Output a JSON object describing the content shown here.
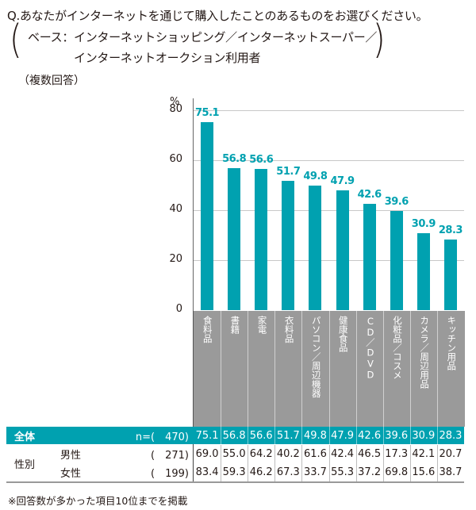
{
  "question": {
    "title": "Q.あなたがインターネットを通じて購入したことのあるものをお選びください。",
    "base_line1": "ベース：インターネットショッピング／インターネットスーパー／",
    "base_line2": "インターネットオークション利用者",
    "paren_open": "(",
    "paren_close": ")",
    "multi_answer": "（複数回答）"
  },
  "chart_data": {
    "type": "bar",
    "title": "あなたがインターネットを通じて購入したことのあるもの（複数回答）",
    "ylabel": "%",
    "xlabel": "",
    "ylim": [
      0,
      80
    ],
    "yticks": [
      0,
      20,
      40,
      60,
      80
    ],
    "grid": true,
    "categories": [
      "食料品",
      "書籍",
      "家電",
      "衣料品",
      "パソコン／周辺機器",
      "健康食品",
      "CD／DVD",
      "化粧品／コスメ",
      "カメラ／周辺用品",
      "キッチン用品"
    ],
    "values": [
      75.1,
      56.8,
      56.6,
      51.7,
      49.8,
      47.9,
      42.6,
      39.6,
      30.9,
      28.3
    ],
    "series": [
      {
        "name": "全体",
        "n": 470,
        "values": [
          75.1,
          56.8,
          56.6,
          51.7,
          49.8,
          47.9,
          42.6,
          39.6,
          30.9,
          28.3
        ]
      },
      {
        "name": "男性",
        "n": 271,
        "values": [
          69.0,
          55.0,
          64.2,
          40.2,
          61.6,
          42.4,
          46.5,
          17.3,
          42.1,
          20.7
        ]
      },
      {
        "name": "女性",
        "n": 199,
        "values": [
          83.4,
          59.3,
          46.2,
          67.3,
          33.7,
          55.3,
          37.2,
          69.8,
          15.6,
          38.7
        ]
      }
    ],
    "bar_color": "#00a1b0"
  },
  "axis": {
    "unit": "%",
    "ticks": [
      "80",
      "60",
      "40",
      "20",
      "0"
    ]
  },
  "bar_labels": [
    "75.1",
    "56.8",
    "56.6",
    "51.7",
    "49.8",
    "47.9",
    "42.6",
    "39.6",
    "30.9",
    "28.3"
  ],
  "table": {
    "total": {
      "label": "全体",
      "n_label": "n=(　470)",
      "values": [
        "75.1",
        "56.8",
        "56.6",
        "51.7",
        "49.8",
        "47.9",
        "42.6",
        "39.6",
        "30.9",
        "28.3"
      ]
    },
    "group_label": "性別",
    "male": {
      "label": "男性",
      "n_label": "(　271)",
      "values": [
        "69.0",
        "55.0",
        "64.2",
        "40.2",
        "61.6",
        "42.4",
        "46.5",
        "17.3",
        "42.1",
        "20.7"
      ]
    },
    "female": {
      "label": "女性",
      "n_label": "(　199)",
      "values": [
        "83.4",
        "59.3",
        "46.2",
        "67.3",
        "33.7",
        "55.3",
        "37.2",
        "69.8",
        "15.6",
        "38.7"
      ]
    }
  },
  "footnote": "※回答数が多かった項目10位までを掲載"
}
